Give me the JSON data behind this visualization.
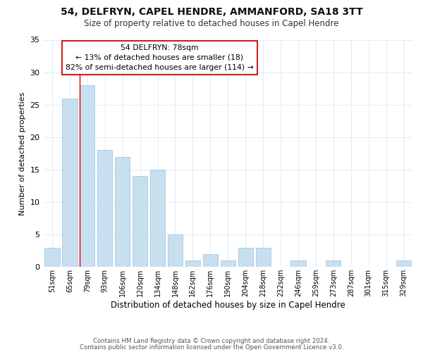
{
  "title": "54, DELFRYN, CAPEL HENDRE, AMMANFORD, SA18 3TT",
  "subtitle": "Size of property relative to detached houses in Capel Hendre",
  "xlabel": "Distribution of detached houses by size in Capel Hendre",
  "ylabel": "Number of detached properties",
  "bar_labels": [
    "51sqm",
    "65sqm",
    "79sqm",
    "93sqm",
    "106sqm",
    "120sqm",
    "134sqm",
    "148sqm",
    "162sqm",
    "176sqm",
    "190sqm",
    "204sqm",
    "218sqm",
    "232sqm",
    "246sqm",
    "259sqm",
    "273sqm",
    "287sqm",
    "301sqm",
    "315sqm",
    "329sqm"
  ],
  "bar_values": [
    3,
    26,
    28,
    18,
    17,
    14,
    15,
    5,
    1,
    2,
    1,
    3,
    3,
    0,
    1,
    0,
    1,
    0,
    0,
    0,
    1
  ],
  "bar_color": "#c8dff0",
  "bar_edge_color": "#a8c8e0",
  "highlight_line_color": "#cc0000",
  "annotation_line1": "54 DELFRYN: 78sqm",
  "annotation_line2": "← 13% of detached houses are smaller (18)",
  "annotation_line3": "82% of semi-detached houses are larger (114) →",
  "annotation_box_color": "#ffffff",
  "annotation_box_edge": "#cc0000",
  "ylim": [
    0,
    35
  ],
  "yticks": [
    0,
    5,
    10,
    15,
    20,
    25,
    30,
    35
  ],
  "footer1": "Contains HM Land Registry data © Crown copyright and database right 2024.",
  "footer2": "Contains public sector information licensed under the Open Government Licence v3.0.",
  "bg_color": "#ffffff",
  "grid_color": "#ddeeff"
}
